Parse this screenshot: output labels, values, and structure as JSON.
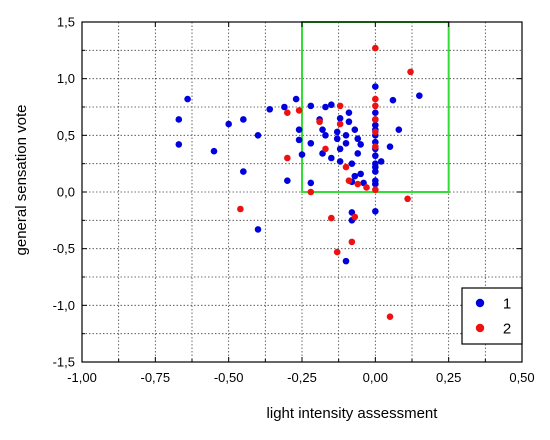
{
  "chart_data": {
    "type": "scatter",
    "title": "",
    "xlabel": "light intensity assessment",
    "ylabel": "general sensation vote",
    "xlim": [
      -1.0,
      0.5
    ],
    "ylim": [
      -1.5,
      1.5
    ],
    "grid": true,
    "legend_position": "bottom-right",
    "x_ticks": [
      "-1,00",
      "-0,75",
      "-0,50",
      "-0,25",
      "0,00",
      "0,25",
      "0,50"
    ],
    "y_ticks": [
      "-1,5",
      "-1,0",
      "-0,5",
      "0,0",
      "0,5",
      "1,0",
      "1,5"
    ],
    "highlight_region": {
      "x": [
        -0.25,
        0.25
      ],
      "y": [
        0.0,
        1.5
      ],
      "color": "#33dd33"
    },
    "series": [
      {
        "name": "1",
        "color": "#0000dd",
        "points": [
          [
            -0.67,
            0.64
          ],
          [
            -0.64,
            0.82
          ],
          [
            -0.67,
            0.42
          ],
          [
            -0.55,
            0.36
          ],
          [
            -0.5,
            0.6
          ],
          [
            -0.45,
            0.64
          ],
          [
            -0.45,
            0.18
          ],
          [
            -0.4,
            0.5
          ],
          [
            -0.4,
            -0.33
          ],
          [
            -0.36,
            0.73
          ],
          [
            -0.31,
            0.75
          ],
          [
            -0.3,
            0.1
          ],
          [
            -0.27,
            0.82
          ],
          [
            -0.25,
            0.33
          ],
          [
            -0.26,
            0.46
          ],
          [
            -0.26,
            0.55
          ],
          [
            -0.22,
            0.76
          ],
          [
            -0.22,
            0.43
          ],
          [
            -0.22,
            0.08
          ],
          [
            -0.19,
            0.64
          ],
          [
            -0.18,
            0.55
          ],
          [
            -0.18,
            0.34
          ],
          [
            -0.17,
            0.5
          ],
          [
            -0.17,
            0.75
          ],
          [
            -0.15,
            0.77
          ],
          [
            -0.15,
            0.3
          ],
          [
            -0.13,
            0.53
          ],
          [
            -0.13,
            0.47
          ],
          [
            -0.12,
            0.65
          ],
          [
            -0.12,
            0.38
          ],
          [
            -0.12,
            0.27
          ],
          [
            -0.1,
            0.5
          ],
          [
            -0.1,
            0.43
          ],
          [
            -0.09,
            0.7
          ],
          [
            -0.09,
            0.62
          ],
          [
            -0.08,
            0.25
          ],
          [
            -0.07,
            0.14
          ],
          [
            -0.07,
            0.55
          ],
          [
            -0.06,
            0.47
          ],
          [
            -0.06,
            0.34
          ],
          [
            -0.05,
            0.42
          ],
          [
            -0.05,
            0.16
          ],
          [
            -0.04,
            0.08
          ],
          [
            -0.08,
            0.09
          ],
          [
            -0.08,
            -0.18
          ],
          [
            -0.08,
            -0.25
          ],
          [
            -0.1,
            -0.61
          ],
          [
            0.0,
            0.93
          ],
          [
            0.0,
            0.7
          ],
          [
            0.0,
            0.64
          ],
          [
            0.0,
            0.59
          ],
          [
            0.0,
            0.55
          ],
          [
            0.0,
            0.5
          ],
          [
            0.0,
            0.44
          ],
          [
            0.0,
            0.38
          ],
          [
            0.0,
            0.32
          ],
          [
            0.0,
            0.25
          ],
          [
            0.0,
            0.22
          ],
          [
            0.0,
            0.18
          ],
          [
            0.0,
            0.1
          ],
          [
            0.0,
            0.07
          ],
          [
            0.0,
            -0.17
          ],
          [
            0.02,
            0.27
          ],
          [
            0.05,
            0.4
          ],
          [
            0.06,
            0.81
          ],
          [
            0.08,
            0.55
          ],
          [
            0.15,
            0.85
          ]
        ]
      },
      {
        "name": "2",
        "color": "#ee1111",
        "points": [
          [
            -0.3,
            0.3
          ],
          [
            -0.3,
            0.7
          ],
          [
            -0.26,
            0.72
          ],
          [
            -0.22,
            0.0
          ],
          [
            -0.19,
            0.62
          ],
          [
            -0.17,
            0.38
          ],
          [
            -0.15,
            -0.23
          ],
          [
            -0.13,
            -0.53
          ],
          [
            -0.12,
            0.76
          ],
          [
            -0.12,
            0.6
          ],
          [
            -0.1,
            0.22
          ],
          [
            -0.09,
            0.1
          ],
          [
            -0.08,
            -0.44
          ],
          [
            -0.07,
            -0.22
          ],
          [
            -0.06,
            0.07
          ],
          [
            -0.03,
            0.04
          ],
          [
            0.0,
            1.27
          ],
          [
            0.0,
            0.82
          ],
          [
            0.0,
            0.76
          ],
          [
            0.0,
            0.64
          ],
          [
            0.0,
            0.53
          ],
          [
            0.0,
            0.4
          ],
          [
            0.0,
            0.02
          ],
          [
            0.05,
            -1.1
          ],
          [
            0.11,
            -0.06
          ],
          [
            0.12,
            1.06
          ],
          [
            -0.46,
            -0.15
          ]
        ]
      }
    ]
  }
}
